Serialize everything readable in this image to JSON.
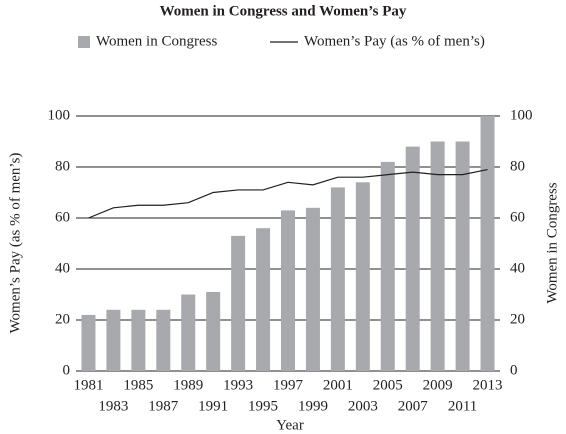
{
  "chart_data": {
    "type": "bar",
    "title": "Women in Congress and Women’s Pay",
    "categories": [
      "1981",
      "1983",
      "1985",
      "1987",
      "1989",
      "1991",
      "1993",
      "1995",
      "1997",
      "1999",
      "2001",
      "2003",
      "2005",
      "2007",
      "2009",
      "2011",
      "2013"
    ],
    "series": [
      {
        "name": "Women in Congress",
        "type": "bar",
        "axis": "y2",
        "color": "#a7a9ac",
        "values": [
          22,
          24,
          24,
          24,
          30,
          31,
          53,
          56,
          63,
          64,
          72,
          74,
          82,
          88,
          90,
          90,
          100
        ]
      },
      {
        "name": "Women’s Pay (as % of men’s)",
        "type": "line",
        "color": "#231f20",
        "values": [
          60,
          64,
          65,
          65,
          66,
          70,
          71,
          71,
          74,
          73,
          76,
          76,
          77,
          78,
          77,
          77,
          79
        ]
      }
    ],
    "x_label": "Year",
    "y_label": "Women’s Pay (as % of men’s)",
    "y2_label": "Women in Congress",
    "ylim": [
      0,
      100
    ],
    "yticks": [
      0,
      20,
      40,
      60,
      80,
      100
    ],
    "y2lim": [
      0,
      100
    ],
    "y2ticks": [
      0,
      20,
      40,
      60,
      80,
      100
    ],
    "grid": true
  }
}
